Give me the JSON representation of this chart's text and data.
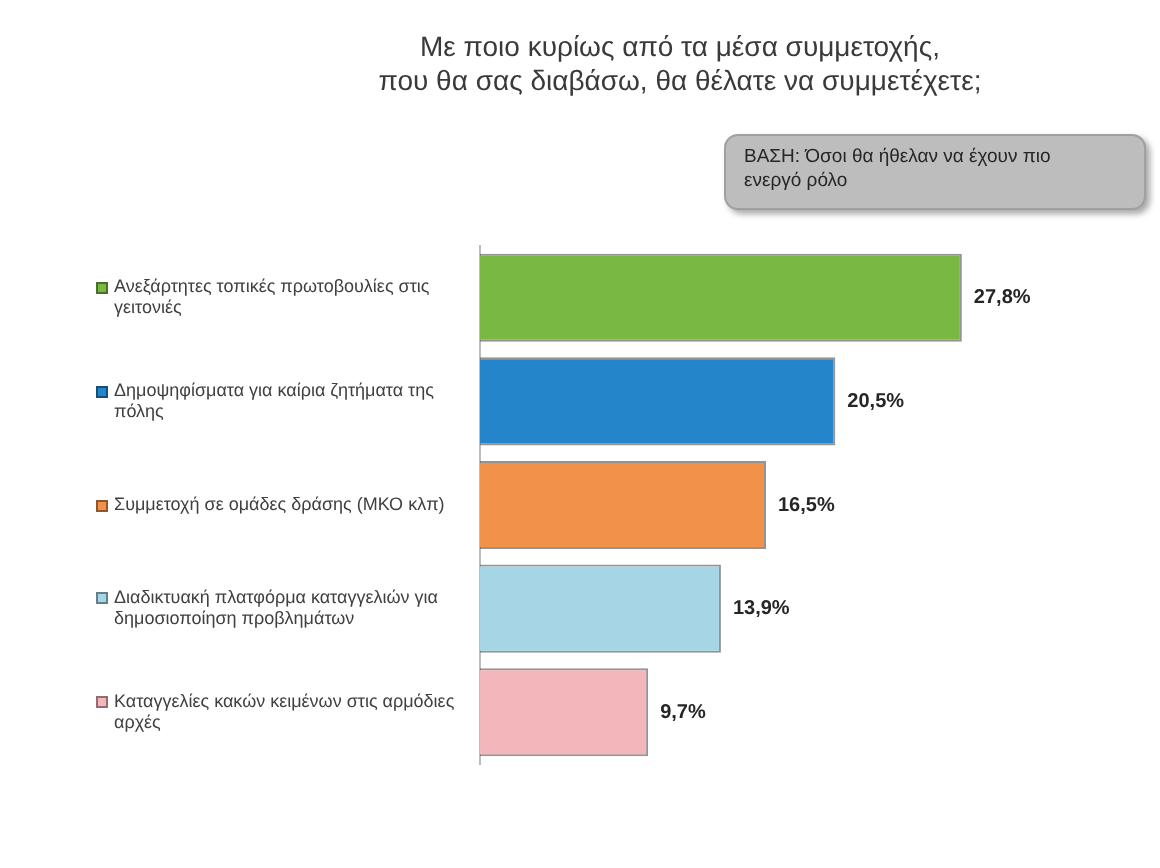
{
  "chart_data": {
    "type": "bar",
    "orientation": "horizontal",
    "title": "Με ποιο κυρίως από τα μέσα συμμετοχής,\nπου θα σας διαβάσω, θα θέλατε να συμμετέχετε;",
    "annotations": [
      "ΒΑΣΗ: Όσοι θα ήθελαν να έχουν πιο ενεργό ρόλο"
    ],
    "categories": [
      "Ανεξάρτητες τοπικές πρωτοβουλίες στις γειτονιές",
      "Δημοψηφίσματα για καίρια ζητήματα της πόλης",
      "Συμμετοχή σε ομάδες δράσης (ΜΚΟ κλπ)",
      "Διαδικτυακή πλατφόρμα καταγγελιών για δημοσιοποίηση προβλημάτων",
      "Καταγγελίες κακών κειμένων στις αρμόδιες αρχές"
    ],
    "values": [
      27.8,
      20.5,
      16.5,
      13.9,
      9.7
    ],
    "colors": [
      "#78b843",
      "#2585cb",
      "#f29149",
      "#a6d6e5",
      "#f3b6bb"
    ],
    "value_labels": [
      "27,8%",
      "20,5%",
      "16,5%",
      "13,9%",
      "9,7%"
    ],
    "tick_labels": "y"
  }
}
